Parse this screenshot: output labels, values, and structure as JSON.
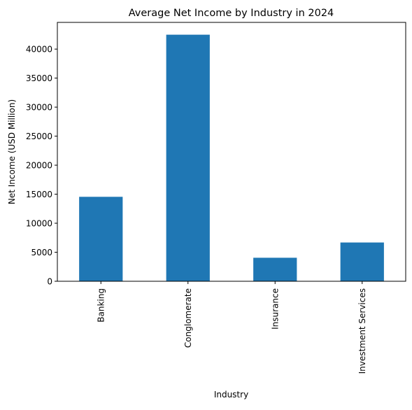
{
  "chart_data": {
    "type": "bar",
    "title": "Average Net Income by Industry in 2024",
    "xlabel": "Industry",
    "ylabel": "Net Income (USD Million)",
    "categories": [
      "Banking",
      "Conglomerate",
      "Insurance",
      "Investment Services"
    ],
    "values": [
      14550,
      42480,
      4050,
      6680
    ],
    "ylim": [
      0,
      44600
    ],
    "yticks": [
      0,
      5000,
      10000,
      15000,
      20000,
      25000,
      30000,
      35000,
      40000
    ],
    "ytick_labels": [
      "0",
      "5000",
      "10000",
      "15000",
      "20000",
      "25000",
      "30000",
      "35000",
      "40000"
    ],
    "bar_color": "#1f77b4",
    "grid": false,
    "legend": "none"
  }
}
